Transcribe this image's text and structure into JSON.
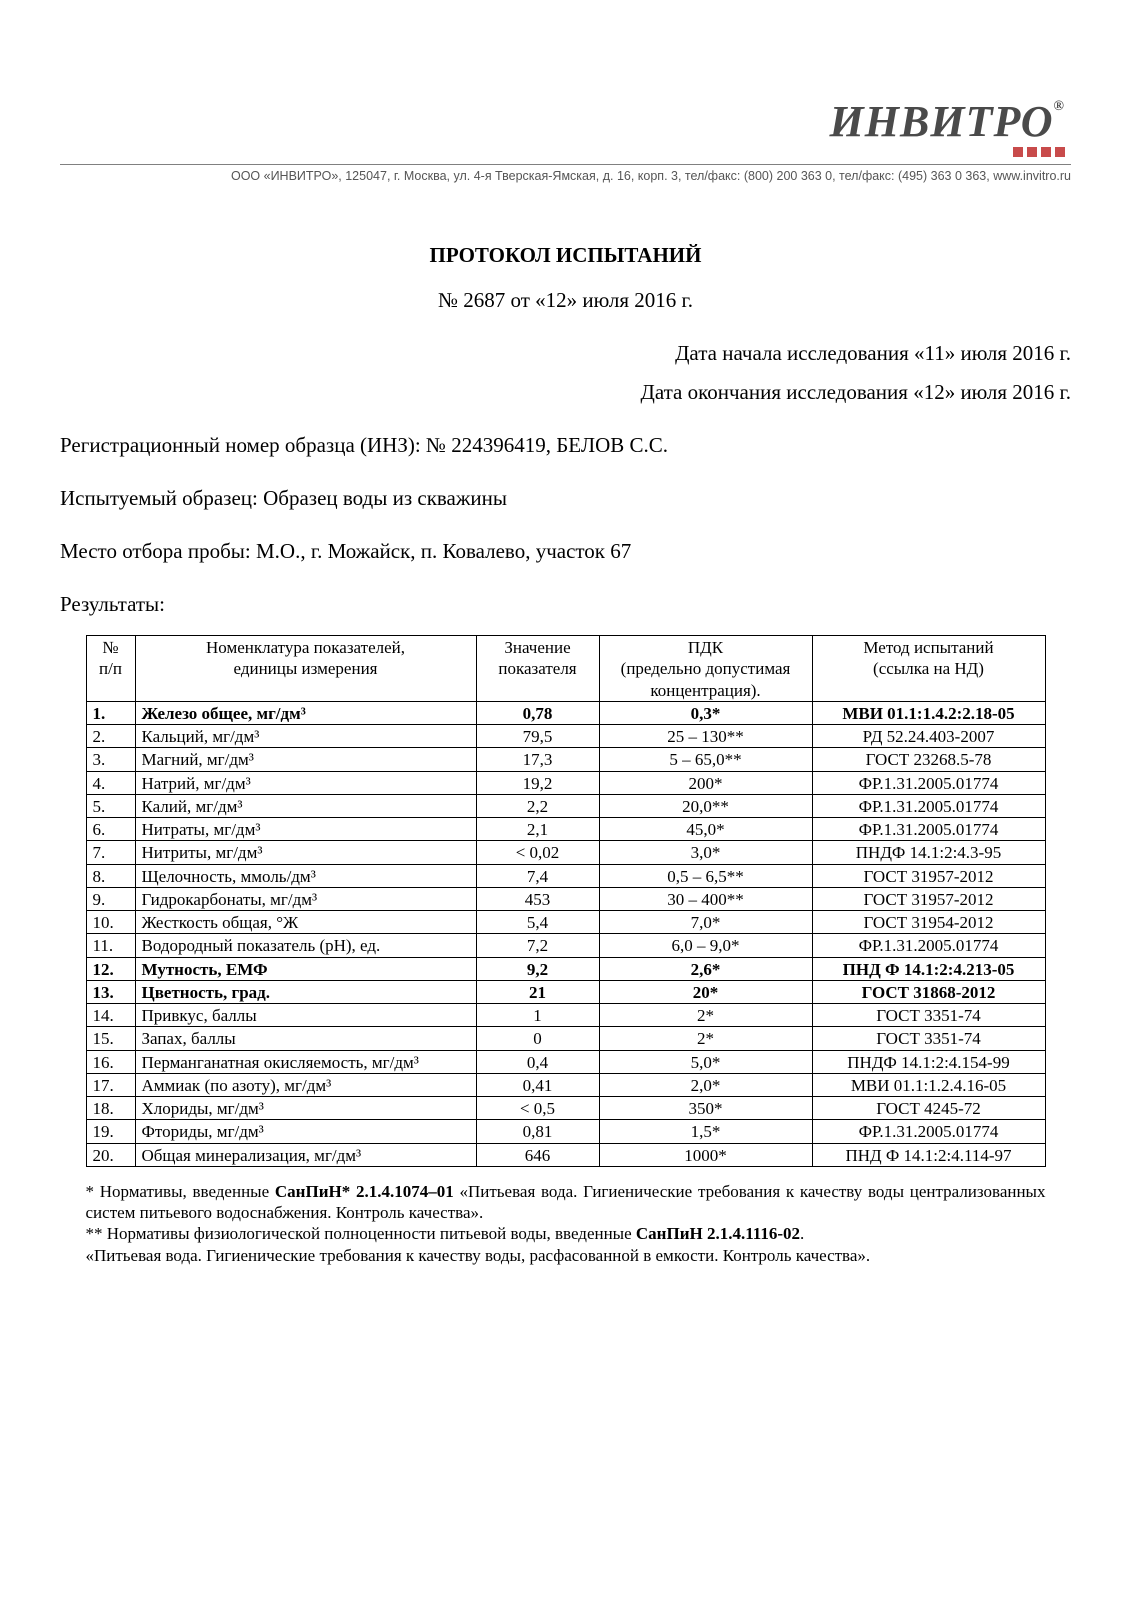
{
  "logo": {
    "text": "ИНВИТРО",
    "reg": "®"
  },
  "company_line": "ООО «ИНВИТРО», 125047, г. Москва, ул. 4-я Тверская-Ямская, д. 16, корп. 3, тел/факс: (800) 200 363 0, тел/факс: (495) 363 0 363, www.invitro.ru",
  "title": "ПРОТОКОЛ ИСПЫТАНИЙ",
  "subtitle": "№ 2687 от «12» июля 2016 г.",
  "date_start": "Дата начала исследования «11» июля 2016 г.",
  "date_end": "Дата окончания исследования «12» июля 2016 г.",
  "reg_line": "Регистрационный номер образца (ИНЗ): № 224396419, БЕЛОВ С.С.",
  "sample_line": "Испытуемый образец: Образец воды из скважины",
  "place_line": "Место отбора пробы: М.О., г. Можайск, п. Ковалево, участок 67",
  "results_label": "Результаты:",
  "table": {
    "headers": {
      "num": "№\nп/п",
      "name": "Номенклатура показателей,\nединицы измерения",
      "val": "Значение\nпоказателя",
      "pdk": "ПДК\n(предельно допустимая\nконцентрация).",
      "method": "Метод испытаний\n(ссылка на НД)"
    },
    "rows": [
      {
        "n": "1.",
        "name": "Железо общее, мг/дм³",
        "val": "0,78",
        "pdk": "0,3*",
        "method": "МВИ 01.1:1.4.2:2.18-05",
        "bold": true
      },
      {
        "n": "2.",
        "name": "Кальций, мг/дм³",
        "val": "79,5",
        "pdk": "25 – 130**",
        "method": "РД 52.24.403-2007"
      },
      {
        "n": "3.",
        "name": "Магний, мг/дм³",
        "val": "17,3",
        "pdk": "5 – 65,0**",
        "method": "ГОСТ 23268.5-78"
      },
      {
        "n": "4.",
        "name": "Натрий, мг/дм³",
        "val": "19,2",
        "pdk": "200*",
        "method": "ФР.1.31.2005.01774"
      },
      {
        "n": "5.",
        "name": "Калий, мг/дм³",
        "val": "2,2",
        "pdk": "20,0**",
        "method": "ФР.1.31.2005.01774"
      },
      {
        "n": "6.",
        "name": "Нитраты, мг/дм³",
        "val": "2,1",
        "pdk": "45,0*",
        "method": "ФР.1.31.2005.01774"
      },
      {
        "n": "7.",
        "name": "Нитриты, мг/дм³",
        "val": "< 0,02",
        "pdk": "3,0*",
        "method": "ПНДФ 14.1:2:4.3-95"
      },
      {
        "n": "8.",
        "name": "Щелочность, ммоль/дм³",
        "val": "7,4",
        "pdk": "0,5 – 6,5**",
        "method": "ГОСТ 31957-2012"
      },
      {
        "n": "9.",
        "name": "Гидрокарбонаты, мг/дм³",
        "val": "453",
        "pdk": "30 – 400**",
        "method": "ГОСТ 31957-2012"
      },
      {
        "n": "10.",
        "name": "Жесткость общая, °Ж",
        "val": "5,4",
        "pdk": "7,0*",
        "method": "ГОСТ 31954-2012"
      },
      {
        "n": "11.",
        "name": "Водородный показатель (рН), ед.",
        "val": "7,2",
        "pdk": "6,0 – 9,0*",
        "method": "ФР.1.31.2005.01774"
      },
      {
        "n": "12.",
        "name": "Мутность, ЕМФ",
        "val": "9,2",
        "pdk": "2,6*",
        "method": "ПНД Ф 14.1:2:4.213-05",
        "bold": true
      },
      {
        "n": "13.",
        "name": "Цветность, град.",
        "val": "21",
        "pdk": "20*",
        "method": "ГОСТ 31868-2012",
        "bold": true
      },
      {
        "n": "14.",
        "name": "Привкус, баллы",
        "val": "1",
        "pdk": "2*",
        "method": "ГОСТ 3351-74"
      },
      {
        "n": "15.",
        "name": "Запах, баллы",
        "val": "0",
        "pdk": "2*",
        "method": "ГОСТ 3351-74"
      },
      {
        "n": "16.",
        "name": "Перманганатная окисляемость, мг/дм³",
        "val": "0,4",
        "pdk": "5,0*",
        "method": "ПНДФ 14.1:2:4.154-99"
      },
      {
        "n": "17.",
        "name": "Аммиак (по азоту), мг/дм³",
        "val": "0,41",
        "pdk": "2,0*",
        "method": "МВИ 01.1:1.2.4.16-05"
      },
      {
        "n": "18.",
        "name": "Хлориды, мг/дм³",
        "val": "< 0,5",
        "pdk": "350*",
        "method": "ГОСТ 4245-72"
      },
      {
        "n": "19.",
        "name": "Фториды, мг/дм³",
        "val": "0,81",
        "pdk": "1,5*",
        "method": "ФР.1.31.2005.01774"
      },
      {
        "n": "20.",
        "name": "Общая минерализация, мг/дм³",
        "val": "646",
        "pdk": "1000*",
        "method": "ПНД Ф 14.1:2:4.114-97"
      }
    ]
  },
  "footnotes": {
    "f1a": "* Нормативы, введенные ",
    "f1b": "СанПиН* 2.1.4.1074–01",
    "f1c": " «Питьевая вода. Гигиенические требования к качеству воды централизованных систем питьевого водоснабжения. Контроль качества».",
    "f2a": "** Нормативы физиологической полноценности питьевой воды, введенные ",
    "f2b": "СанПиН 2.1.4.1116-02",
    "f2c": ".",
    "f3": "«Питьевая вода. Гигиенические требования к качеству воды, расфасованной в емкости. Контроль качества»."
  }
}
